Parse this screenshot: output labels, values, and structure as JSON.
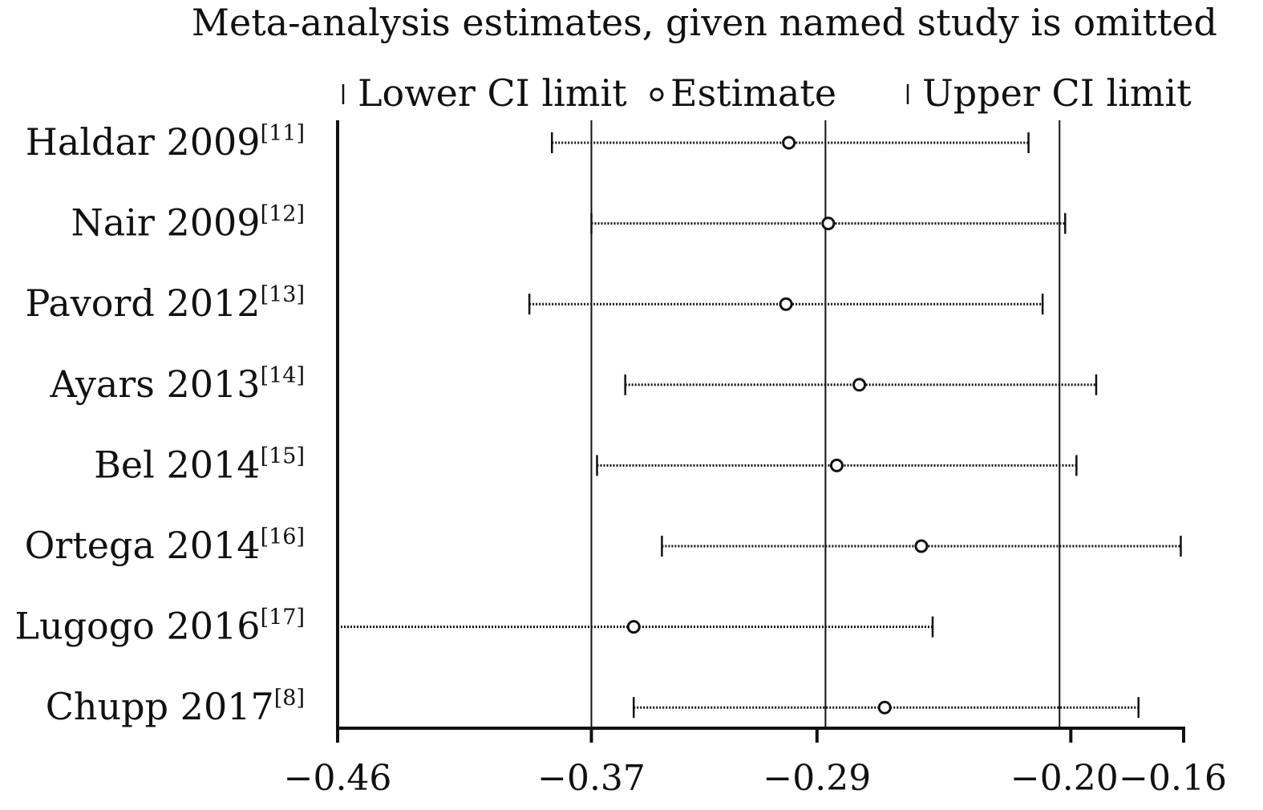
{
  "chart_data": {
    "type": "scatter",
    "title": "Meta-analysis estimates, given named study is omitted",
    "legend": {
      "placement": "top",
      "entries": [
        {
          "key": "lower",
          "label": "Lower CI limit"
        },
        {
          "key": "estimate",
          "label": "Estimate"
        },
        {
          "key": "upper",
          "label": "Upper CI limit"
        }
      ]
    },
    "xlim": [
      -0.46,
      -0.16
    ],
    "x_ticks": [
      -0.46,
      -0.37,
      -0.29,
      -0.2,
      -0.16
    ],
    "x_tick_labels": [
      "−0.46",
      "−0.37",
      "−0.29",
      "−0.20",
      "−0.16"
    ],
    "reference_lines": [
      -0.37,
      -0.287,
      -0.204
    ],
    "grid": false,
    "studies": [
      {
        "label": "Haldar 2009",
        "ref": "[11]",
        "lower": -0.384,
        "estimate": -0.3,
        "upper": -0.215
      },
      {
        "label": "Nair 2009",
        "ref": "[12]",
        "lower": -0.37,
        "estimate": -0.286,
        "upper": -0.202
      },
      {
        "label": "Pavord 2012",
        "ref": "[13]",
        "lower": -0.392,
        "estimate": -0.301,
        "upper": -0.21
      },
      {
        "label": "Ayars 2013",
        "ref": "[14]",
        "lower": -0.358,
        "estimate": -0.275,
        "upper": -0.191
      },
      {
        "label": "Bel 2014",
        "ref": "[15]",
        "lower": -0.368,
        "estimate": -0.283,
        "upper": -0.198
      },
      {
        "label": "Ortega 2014",
        "ref": "[16]",
        "lower": -0.345,
        "estimate": -0.253,
        "upper": -0.161
      },
      {
        "label": "Lugogo 2016",
        "ref": "[17]",
        "lower": -0.46,
        "estimate": -0.355,
        "upper": -0.249
      },
      {
        "label": "Chupp 2017",
        "ref": "[8]",
        "lower": -0.355,
        "estimate": -0.266,
        "upper": -0.176
      }
    ]
  }
}
